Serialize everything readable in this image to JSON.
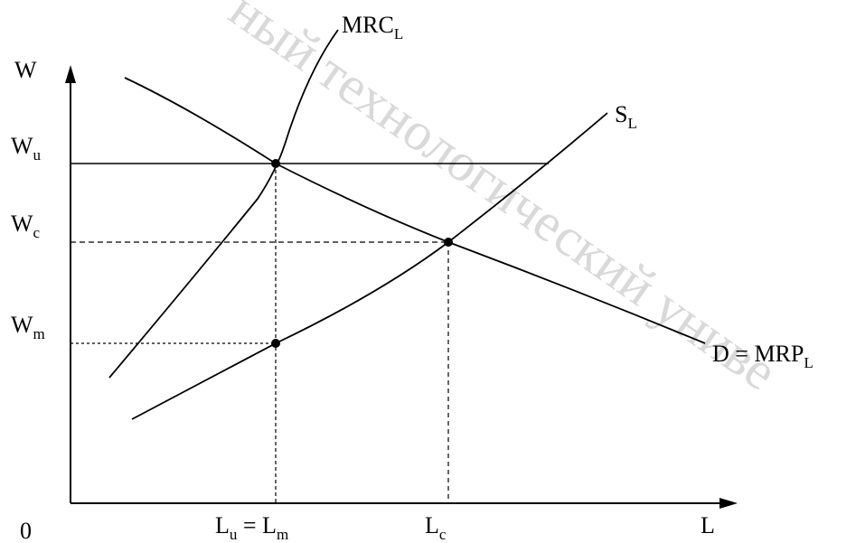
{
  "watermark": "ный технологический униве",
  "axes": {
    "y_label": "W",
    "x_label": "L",
    "origin_label": "0"
  },
  "curves": {
    "mrc": {
      "label_main": "MRC",
      "label_sub": "L"
    },
    "supply": {
      "label_main": "S",
      "label_sub": "L"
    },
    "demand": {
      "label_main": "D = MRP",
      "label_sub": "L"
    }
  },
  "y_ticks": [
    {
      "main": "W",
      "sub": "u"
    },
    {
      "main": "W",
      "sub": "c"
    },
    {
      "main": "W",
      "sub": "m"
    }
  ],
  "x_ticks": [
    {
      "text": "L",
      "sub1": "u",
      "mid": " = L",
      "sub2": "m"
    },
    {
      "text": "L",
      "sub": "c"
    }
  ]
}
